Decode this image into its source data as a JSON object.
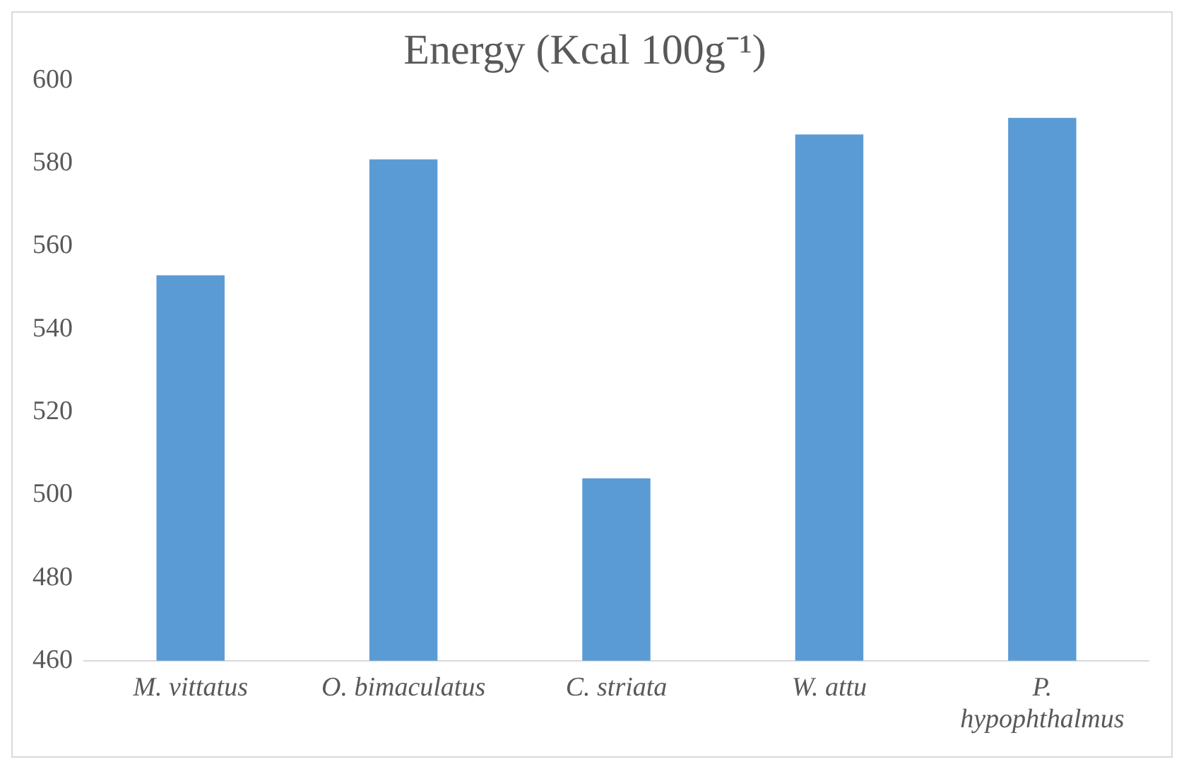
{
  "chart_data": {
    "type": "bar",
    "title": "Energy (Kcal 100g⁻¹)",
    "categories": [
      "M. vittatus",
      "O. bimaculatus",
      "C. striata",
      "W. attu",
      "P. hypophthalmus"
    ],
    "values": [
      553,
      581,
      504,
      587,
      591
    ],
    "color": "#5b9bd5",
    "ylim": [
      460,
      600
    ],
    "yticks": [
      460,
      480,
      500,
      520,
      540,
      560,
      580,
      600
    ],
    "grid": false,
    "legend": false
  }
}
